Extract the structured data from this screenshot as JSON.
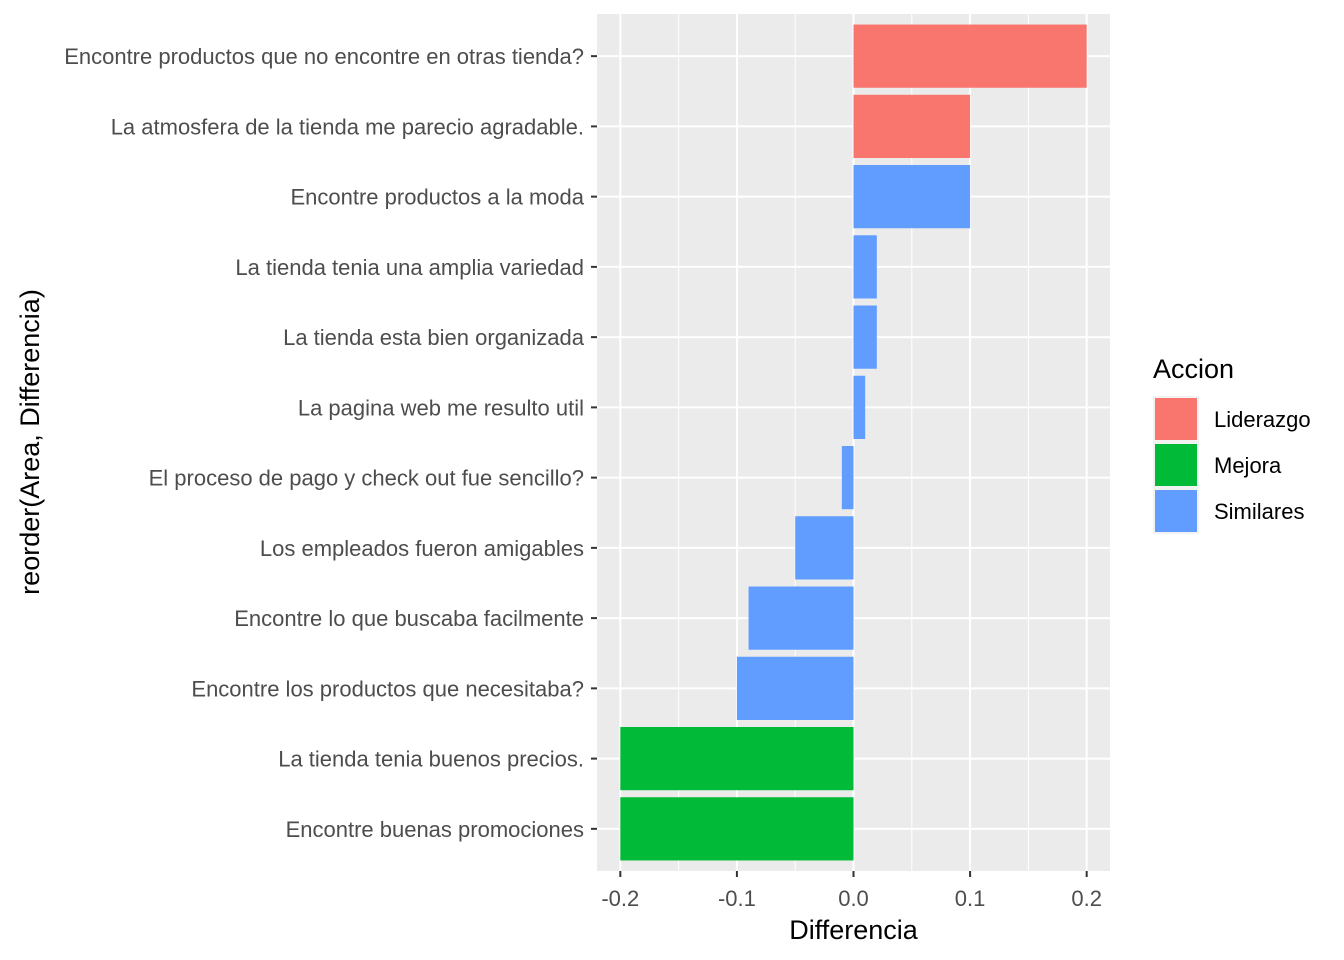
{
  "chart_data": {
    "type": "bar",
    "orientation": "horizontal",
    "xlabel": "Differencia",
    "ylabel": "reorder(Area, Differencia)",
    "xlim": [
      -0.22,
      0.22
    ],
    "x_ticks": [
      -0.2,
      -0.1,
      0.0,
      0.1,
      0.2
    ],
    "x_tick_labels": [
      "-0.2",
      "-0.1",
      "0.0",
      "0.1",
      "0.2"
    ],
    "grid": true,
    "legend": {
      "title": "Accion",
      "position": "right",
      "entries": [
        {
          "label": "Liderazgo",
          "color": "#F8766D"
        },
        {
          "label": "Mejora",
          "color": "#00BA38"
        },
        {
          "label": "Similares",
          "color": "#619CFF"
        }
      ]
    },
    "categories": [
      "Encontre productos que no encontre en otras tienda?",
      "La atmosfera de la tienda me parecio agradable.",
      "Encontre productos a la moda",
      "La tienda tenia una amplia variedad",
      "La tienda esta bien organizada",
      "La pagina web me resulto util",
      "El proceso de pago y check out fue sencillo?",
      "Los empleados fueron amigables",
      "Encontre lo que buscaba facilmente",
      "Encontre los productos que necesitaba?",
      "La tienda tenia buenos precios.",
      "Encontre buenas promociones"
    ],
    "values": [
      0.2,
      0.1,
      0.1,
      0.02,
      0.02,
      0.01,
      -0.01,
      -0.05,
      -0.09,
      -0.1,
      -0.2,
      -0.2
    ],
    "groups": [
      "Liderazgo",
      "Liderazgo",
      "Similares",
      "Similares",
      "Similares",
      "Similares",
      "Similares",
      "Similares",
      "Similares",
      "Similares",
      "Mejora",
      "Mejora"
    ]
  }
}
